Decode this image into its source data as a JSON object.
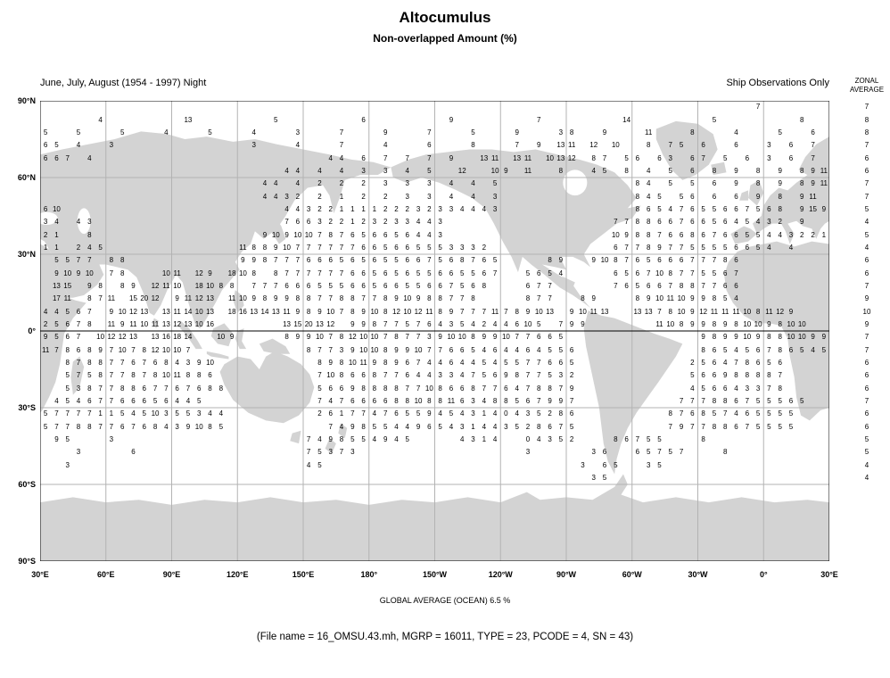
{
  "title": "Altocumulus",
  "subtitle": "Non-overlapped Amount (%)",
  "header_left": "June, July, August (1954 - 1997) Night",
  "header_right": "Ship Observations Only",
  "zonal_label_line1": "ZONAL",
  "zonal_label_line2": "AVERAGE",
  "global_average_text": "GLOBAL AVERAGE (OCEAN)   6.5 %",
  "file_info_text": "(File name = 16_OMSU.43.mh, MGRP = 16011, TYPE = 23, PCODE = 4, SN = 43)",
  "map_colors": {
    "land": "#d3d3d3",
    "grid": "#b3b3b3",
    "border": "#000000",
    "text": "#000000"
  },
  "chart_data": {
    "type": "heatmap",
    "title": "Altocumulus",
    "subtitle": "Non-overlapped Amount (%)",
    "units": "percent",
    "projection": "equirectangular",
    "lon_origin_deg_east": 30,
    "cell_size_deg": 5,
    "grid_interval_deg": 30,
    "lat_ticks": [
      "90°N",
      "60°N",
      "30°N",
      "0°",
      "30°S",
      "60°S",
      "90°S"
    ],
    "lon_ticks": [
      "30°E",
      "60°E",
      "90°E",
      "120°E",
      "150°E",
      "180°",
      "150°W",
      "120°W",
      "90°W",
      "60°W",
      "30°W",
      "0°",
      "30°E"
    ],
    "global_average_ocean_pct": 6.5,
    "zonal_averages": [
      7,
      8,
      8,
      7,
      6,
      6,
      7,
      7,
      5,
      4,
      5,
      4,
      6,
      6,
      7,
      9,
      10,
      9,
      7,
      7,
      6,
      6,
      6,
      7,
      6,
      6,
      5,
      5,
      4,
      4
    ],
    "rows": [
      {
        "lat": "87.5°N",
        "runs": [
          [
            65,
            "7"
          ]
        ]
      },
      {
        "lat": "82.5°N",
        "runs": [
          [
            5,
            "4"
          ],
          [
            13,
            "13"
          ],
          [
            21,
            "5"
          ],
          [
            29,
            "6"
          ],
          [
            37,
            "9"
          ],
          [
            45,
            "7"
          ],
          [
            53,
            "14"
          ],
          [
            61,
            "5"
          ],
          [
            69,
            "8"
          ]
        ]
      },
      {
        "lat": "77.5°N",
        "runs": [
          [
            0,
            "5"
          ],
          [
            3,
            "5"
          ],
          [
            7,
            "5"
          ],
          [
            11,
            "4"
          ],
          [
            15,
            "5"
          ],
          [
            19,
            "4"
          ],
          [
            23,
            "3"
          ],
          [
            27,
            "7"
          ],
          [
            31,
            "9"
          ],
          [
            35,
            "7"
          ],
          [
            39,
            "5"
          ],
          [
            43,
            "9"
          ],
          [
            47,
            "3 8"
          ],
          [
            51,
            "9"
          ],
          [
            55,
            "11"
          ],
          [
            59,
            "8"
          ],
          [
            63,
            "4"
          ],
          [
            67,
            "5"
          ],
          [
            70,
            "6"
          ]
        ]
      },
      {
        "lat": "72.5°N",
        "runs": [
          [
            0,
            "6 5"
          ],
          [
            3,
            "4"
          ],
          [
            6,
            "3"
          ],
          [
            19,
            "3"
          ],
          [
            23,
            "4"
          ],
          [
            27,
            "7"
          ],
          [
            31,
            "4"
          ],
          [
            35,
            "6"
          ],
          [
            39,
            "8"
          ],
          [
            43,
            "7"
          ],
          [
            45,
            "9"
          ],
          [
            47,
            "13 11"
          ],
          [
            50,
            "12"
          ],
          [
            52,
            "10"
          ],
          [
            55,
            "8"
          ],
          [
            57,
            "7 5"
          ],
          [
            60,
            "6"
          ],
          [
            63,
            "6"
          ],
          [
            66,
            "3"
          ],
          [
            68,
            "6"
          ],
          [
            70,
            "7"
          ]
        ]
      },
      {
        "lat": "67.5°N",
        "runs": [
          [
            0,
            "6 6 7"
          ],
          [
            4,
            "4"
          ],
          [
            26,
            "4 4"
          ],
          [
            29,
            "6"
          ],
          [
            31,
            "7"
          ],
          [
            33,
            "7"
          ],
          [
            35,
            "7"
          ],
          [
            37,
            "9"
          ],
          [
            40,
            "13 11"
          ],
          [
            43,
            "13 11"
          ],
          [
            46,
            "10 13 12"
          ],
          [
            50,
            "8 7"
          ],
          [
            53,
            "5 6"
          ],
          [
            56,
            "6 3"
          ],
          [
            59,
            "6 7"
          ],
          [
            62,
            "5"
          ],
          [
            64,
            "6"
          ],
          [
            66,
            "3"
          ],
          [
            68,
            "6"
          ],
          [
            70,
            "7"
          ]
        ]
      },
      {
        "lat": "62.5°N",
        "runs": [
          [
            22,
            "4 4"
          ],
          [
            25,
            "4"
          ],
          [
            27,
            "4"
          ],
          [
            29,
            "3"
          ],
          [
            31,
            "3"
          ],
          [
            33,
            "4"
          ],
          [
            35,
            "5"
          ],
          [
            38,
            "12"
          ],
          [
            41,
            "10 9"
          ],
          [
            44,
            "11"
          ],
          [
            47,
            "8"
          ],
          [
            50,
            "4 5"
          ],
          [
            53,
            "8"
          ],
          [
            55,
            "4"
          ],
          [
            57,
            "5"
          ],
          [
            59,
            "6"
          ],
          [
            61,
            "8"
          ],
          [
            63,
            "9"
          ],
          [
            65,
            "8"
          ],
          [
            67,
            "9"
          ],
          [
            69,
            "8 9 11"
          ]
        ]
      },
      {
        "lat": "57.5°N",
        "runs": [
          [
            20,
            "4 4"
          ],
          [
            23,
            "4"
          ],
          [
            25,
            "2"
          ],
          [
            27,
            "2"
          ],
          [
            29,
            "2"
          ],
          [
            31,
            "3"
          ],
          [
            33,
            "3"
          ],
          [
            35,
            "3"
          ],
          [
            37,
            "4"
          ],
          [
            39,
            "4"
          ],
          [
            41,
            "5"
          ],
          [
            54,
            "8 4"
          ],
          [
            57,
            "5"
          ],
          [
            59,
            "5"
          ],
          [
            61,
            "6"
          ],
          [
            63,
            "9"
          ],
          [
            65,
            "8"
          ],
          [
            67,
            "9"
          ],
          [
            69,
            "8 9 11"
          ]
        ]
      },
      {
        "lat": "52.5°N",
        "runs": [
          [
            20,
            "4 4 3 2"
          ],
          [
            25,
            "2"
          ],
          [
            27,
            "1"
          ],
          [
            29,
            "2"
          ],
          [
            31,
            "2"
          ],
          [
            33,
            "3"
          ],
          [
            35,
            "3"
          ],
          [
            37,
            "4"
          ],
          [
            39,
            "4"
          ],
          [
            41,
            "3"
          ],
          [
            54,
            "8 4 5"
          ],
          [
            58,
            "5 6"
          ],
          [
            61,
            "6"
          ],
          [
            63,
            "6"
          ],
          [
            65,
            "9"
          ],
          [
            67,
            "8"
          ],
          [
            69,
            "9 11"
          ]
        ]
      },
      {
        "lat": "47.5°N",
        "runs": [
          [
            0,
            "6 10"
          ],
          [
            22,
            "4 4 3 2 2 1 1 1 1 2 2 2 3 2 3 3 4 4 4 3"
          ],
          [
            54,
            "8 6 5 4 7 6 5 5 6 6 7 5 6 8"
          ],
          [
            69,
            "9 15 9"
          ]
        ]
      },
      {
        "lat": "42.5°N",
        "runs": [
          [
            0,
            "3 4"
          ],
          [
            3,
            "4 3"
          ],
          [
            22,
            "7 6 6 3 2 2 1 2 3 2 3 3 4 4 3"
          ],
          [
            52,
            "7 7 8 8 6 6 7 6 6 5 6 4 5 4 3 2"
          ],
          [
            69,
            "9"
          ]
        ]
      },
      {
        "lat": "37.5°N",
        "runs": [
          [
            0,
            "2 1"
          ],
          [
            4,
            "8"
          ],
          [
            20,
            "9 10 9 10 10 7 8 7 6 5 6 6 5 6 4 4 3"
          ],
          [
            52,
            "10 9 8 8 7 6 6 8 6 7 6 6 5 5 4 4 3 2 2 1"
          ]
        ]
      },
      {
        "lat": "32.5°N",
        "runs": [
          [
            0,
            "1 1"
          ],
          [
            3,
            "2 4 5"
          ],
          [
            18,
            "11 8 8 9 10 7 7 7 7 7 7 6 6 5 6 6 5 5 5 3 3 3 2"
          ],
          [
            52,
            "6 7 7 8 9 7 7 5 5 5 5 6 6 5 4"
          ],
          [
            68,
            "4"
          ]
        ]
      },
      {
        "lat": "27.5°N",
        "runs": [
          [
            1,
            "5 5 7 7"
          ],
          [
            6,
            "8 8"
          ],
          [
            18,
            "9 9 8 7 7 7 6 6 6 5 6 5 6 5 5 6 6 7 5 6 8 7 6 5"
          ],
          [
            46,
            "8 9"
          ],
          [
            50,
            "9 10 8 7 6 5 6 6 6 7 7 7 8 6"
          ]
        ]
      },
      {
        "lat": "22.5°N",
        "runs": [
          [
            1,
            "9 10 9 10"
          ],
          [
            6,
            "7 8"
          ],
          [
            11,
            "10 11"
          ],
          [
            14,
            "12 9"
          ],
          [
            17,
            "18 10 8"
          ],
          [
            21,
            "8 7 7 7 7 7 7 6 6 5 6 5 6 5 5 6 6 5 5 6 7"
          ],
          [
            44,
            "5 6 5 4"
          ],
          [
            52,
            "6 5 6 7 10 8 7 7 5 5 6 7"
          ]
        ]
      },
      {
        "lat": "17.5°N",
        "runs": [
          [
            1,
            "13 15"
          ],
          [
            4,
            "9 8"
          ],
          [
            7,
            "8 9"
          ],
          [
            10,
            "12 11 10"
          ],
          [
            14,
            "18 10 8 8"
          ],
          [
            19,
            "7 7 7 6 6 6 5 5 5 6 6 5 6 6 5 5 6 6 7 5 6 8"
          ],
          [
            44,
            "6 7 7"
          ],
          [
            52,
            "7 6 5 6 6 7 8 8 7 7 6 6"
          ]
        ]
      },
      {
        "lat": "12.5°N",
        "runs": [
          [
            1,
            "17 11"
          ],
          [
            4,
            "8 7 11"
          ],
          [
            8,
            "15 20 12"
          ],
          [
            12,
            "9 11 12 13"
          ],
          [
            17,
            "11 10 9 8 9 9 8 8 7 7 8 8 7 7 8 9 10 9 8 8 7 7 8"
          ],
          [
            44,
            "8 7 7"
          ],
          [
            49,
            "8 9"
          ],
          [
            54,
            "8 9 10 11 10 9 9 8"
          ],
          [
            62,
            "5 4"
          ]
        ]
      },
      {
        "lat": "7.5°N",
        "runs": [
          [
            0,
            "4 4 5 6 7"
          ],
          [
            6,
            "9 10 12 13"
          ],
          [
            11,
            "13 11 14 10 13"
          ],
          [
            17,
            "18 16 13 14 13 11 9 8 9 10 7 8 9 10 8 12 10 12 11 8 9 7 7 7 11 7 8 9 10 13"
          ],
          [
            48,
            "9 10 11 13"
          ],
          [
            54,
            "13 13 7 8 10 9 12 11 11 11 10 8 11 12 9"
          ]
        ]
      },
      {
        "lat": "2.5°N",
        "runs": [
          [
            0,
            "2 5 6 7 8"
          ],
          [
            6,
            "11 9 11 10 11 13 12 13 10 16"
          ],
          [
            22,
            "13 15 20 13 12"
          ],
          [
            28,
            "9 9 8 7 7 5 7 6 4 3 5 4 2 4 4 6 10 5"
          ],
          [
            47,
            "7 9 9"
          ],
          [
            56,
            "11 10 8 9 9 8 9 8 10 10 9 8 10 10"
          ]
        ]
      },
      {
        "lat": "2.5°S",
        "runs": [
          [
            0,
            "9 5 6 7"
          ],
          [
            5,
            "10 12 12 13"
          ],
          [
            10,
            "13 16 18 14"
          ],
          [
            16,
            "10 9"
          ],
          [
            22,
            "8 9 9 10 7 8 12 10 10 7 8 7 7 3 9 10 10 8 9 9 10 7 7 6 6 5"
          ],
          [
            60,
            "9 8 9 9 10 9 8 8 10 10 9 9"
          ]
        ]
      },
      {
        "lat": "7.5°S",
        "runs": [
          [
            0,
            "11 7 8 6 8 9 7 10 7 8 12 10 10 7"
          ],
          [
            24,
            "8 7 7 3 9 10 10 8 9 9 10 7 7 6 6 5 4 6 4 4 6 4 5 5 6"
          ],
          [
            60,
            "8 6 5 4 5 6 7 8 6 5 4 5"
          ]
        ]
      },
      {
        "lat": "12.5°S",
        "runs": [
          [
            2,
            "8 7 8 8 7 7 6 7 6 8 4 3 9 10"
          ],
          [
            25,
            "8 9 8 10 11 9 8 9 6 7 4 4 6 4 4 5 4 5 5 7 7 6 6 5"
          ],
          [
            59,
            "2 5 6 4 7 8 6 5 6"
          ]
        ]
      },
      {
        "lat": "17.5°S",
        "runs": [
          [
            2,
            "5 7 5 8 7 7 8 7 8 10 11 8 8 6"
          ],
          [
            25,
            "7 10 8 6 6 8 7 7 6 4 4 3 3 4 7 5 6 9 8 7 7 5 3 2"
          ],
          [
            59,
            "5 6 6 9 8 8 8 8 7"
          ]
        ]
      },
      {
        "lat": "22.5°S",
        "runs": [
          [
            2,
            "5 3 8 7 7 8 8 6 7 7 6 7 6 8 8"
          ],
          [
            25,
            "5 6 6 9 8 8 8 8 7 7 10 8 6 6 8 7 7 6 4 7 8 8 7 9"
          ],
          [
            59,
            "4 5 6 6 4 3 3 7 8"
          ]
        ]
      },
      {
        "lat": "27.5°S",
        "runs": [
          [
            1,
            "4 5 4 6 7 7 6 6 6 5 6 4 4 5"
          ],
          [
            25,
            "7 4 7 6 6 6 6 8 8 10 8 8 11 6 3 4 8 8 5 6 7 9 9 7"
          ],
          [
            58,
            "7 7 7 8 8 6 7 5 5 5 6 5"
          ]
        ]
      },
      {
        "lat": "32.5°S",
        "runs": [
          [
            0,
            "5 7 7 7 7 1 1 5 4 5 10 3 5 5 3 4 4"
          ],
          [
            25,
            "2 6 1 7 7 4 7 6 5 5 9 4 5 4 3 1 4 0 4 3 5 2 8 6"
          ],
          [
            57,
            "8 7 6 8 5 7 4 6 5 5 5 5"
          ]
        ]
      },
      {
        "lat": "37.5°S",
        "runs": [
          [
            0,
            "5 7 7 8 8 7 7 6 7 6 8 4 3 9 10 8 5"
          ],
          [
            26,
            "7 4 9 8 5 5 4 4 9 6 5 4 3 1 4 4 3 5 2 8 6 7 5"
          ],
          [
            57,
            "7 9 7 7 8 8 6 7 5 5 5 5"
          ]
        ]
      },
      {
        "lat": "42.5°S",
        "runs": [
          [
            1,
            "9 5"
          ],
          [
            6,
            "3"
          ],
          [
            24,
            "7 4 9 8 5 5 4 9 4 5"
          ],
          [
            38,
            "4 3 1 4"
          ],
          [
            44,
            "0 4 3 5 2"
          ],
          [
            52,
            "8 6 7 5 5"
          ],
          [
            60,
            "8"
          ]
        ]
      },
      {
        "lat": "47.5°S",
        "runs": [
          [
            3,
            "3"
          ],
          [
            8,
            "6"
          ],
          [
            24,
            "7 5 3 7 3"
          ],
          [
            44,
            "3"
          ],
          [
            50,
            "3 6"
          ],
          [
            54,
            "6 5 7 5 7"
          ],
          [
            62,
            "8"
          ]
        ]
      },
      {
        "lat": "52.5°S",
        "runs": [
          [
            2,
            "3"
          ],
          [
            24,
            "4 5"
          ],
          [
            49,
            "3"
          ],
          [
            51,
            "6 5"
          ],
          [
            55,
            "3 5"
          ]
        ]
      },
      {
        "lat": "57.5°S",
        "runs": [
          [
            50,
            "3 5"
          ]
        ]
      }
    ]
  }
}
